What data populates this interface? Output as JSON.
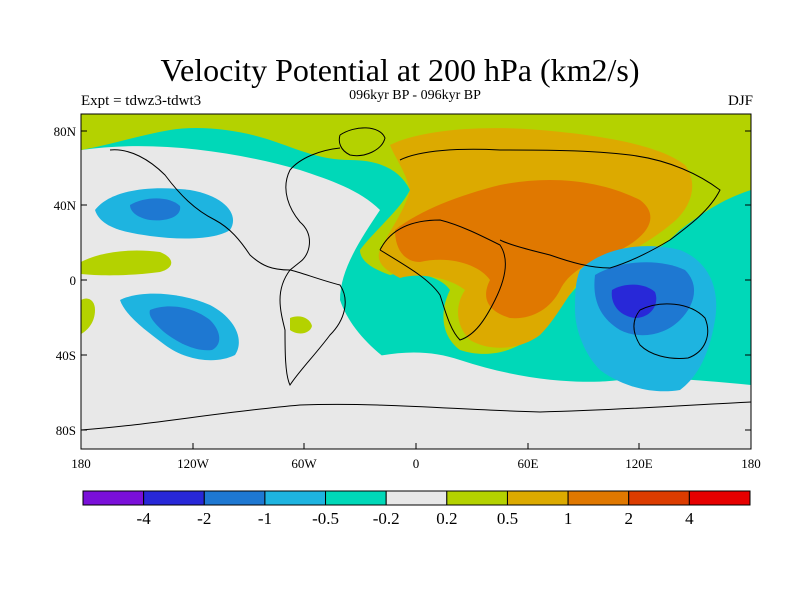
{
  "title": "Velocity Potential at 200 hPa (km2/s)",
  "subtitle": "096kyr BP - 096kyr BP",
  "experiment": "Expt = tdwz3-tdwt3",
  "season": "DJF",
  "lat_labels": [
    "80N",
    "40N",
    "0",
    "40S",
    "80S"
  ],
  "lon_labels": [
    "180",
    "120W",
    "60W",
    "0",
    "60E",
    "120E",
    "180"
  ],
  "colorbar": {
    "colors": [
      "#7a10d9",
      "#2828d8",
      "#1e78d2",
      "#1eb4e0",
      "#00d8b8",
      "#e8e8e8",
      "#b4d200",
      "#dcaa00",
      "#e07800",
      "#dc3c00",
      "#e60000"
    ],
    "labels": [
      "-4",
      "-2",
      "-1",
      "-0.5",
      "-0.2",
      "0.2",
      "0.5",
      "1",
      "2",
      "4"
    ]
  },
  "regions": [
    {
      "name": "bg-teal",
      "color": "#00d8b8"
    },
    {
      "name": "grey-arctic",
      "color": "#e8e8e8"
    },
    {
      "name": "green-north",
      "color": "#b4d200"
    },
    {
      "name": "orange-eurasia",
      "color": "#dcaa00"
    },
    {
      "name": "darkorange-core",
      "color": "#e07800"
    },
    {
      "name": "blue-indo",
      "color": "#1eb4e0"
    },
    {
      "name": "darkblue-indo",
      "color": "#1e78d2"
    },
    {
      "name": "purple-indo",
      "color": "#2828d8"
    }
  ]
}
